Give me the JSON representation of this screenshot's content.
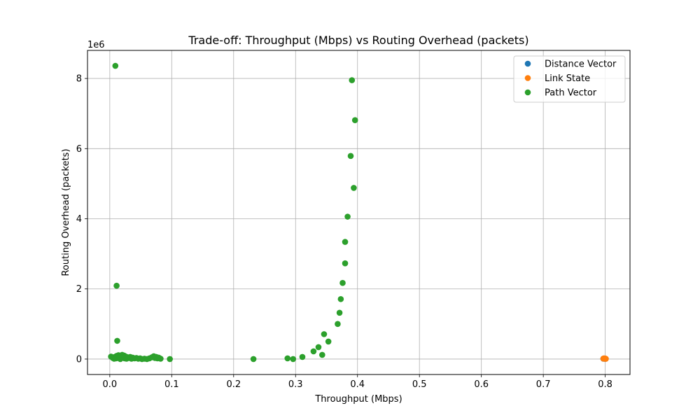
{
  "chart_data": {
    "type": "scatter",
    "title": "Trade-off: Throughput (Mbps) vs Routing Overhead (packets)",
    "xlabel": "Throughput (Mbps)",
    "ylabel": "Routing Overhead (packets)",
    "y_offset_label": "1e6",
    "xlim": [
      -0.036,
      0.84
    ],
    "ylim": [
      -0.44,
      8.8
    ],
    "y_multiplier": 1000000,
    "xticks": [
      0.0,
      0.1,
      0.2,
      0.3,
      0.4,
      0.5,
      0.6,
      0.7,
      0.8
    ],
    "xtick_labels": [
      "0.0",
      "0.1",
      "0.2",
      "0.3",
      "0.4",
      "0.5",
      "0.6",
      "0.7",
      "0.8"
    ],
    "yticks": [
      0,
      2,
      4,
      6,
      8
    ],
    "ytick_labels": [
      "0",
      "2",
      "4",
      "6",
      "8"
    ],
    "grid": true,
    "legend_position": "top-right",
    "series": [
      {
        "name": "Distance Vector",
        "color": "#1f77b4",
        "points": [
          [
            0.797,
            0.01
          ],
          [
            0.799,
            0.012
          ],
          [
            0.8,
            0.008
          ]
        ]
      },
      {
        "name": "Link State",
        "color": "#ff7f0e",
        "points": [
          [
            0.797,
            0.012
          ],
          [
            0.798,
            0.02
          ],
          [
            0.799,
            0.01
          ],
          [
            0.8,
            0.015
          ],
          [
            0.801,
            0.008
          ]
        ]
      },
      {
        "name": "Path Vector",
        "color": "#2ca02c",
        "points": [
          [
            0.009,
            8.36
          ],
          [
            0.011,
            2.09
          ],
          [
            0.012,
            0.52
          ],
          [
            0.002,
            0.07
          ],
          [
            0.005,
            0.03
          ],
          [
            0.007,
            0.01
          ],
          [
            0.008,
            0.06
          ],
          [
            0.01,
            0.02
          ],
          [
            0.011,
            0.09
          ],
          [
            0.013,
            0.03
          ],
          [
            0.014,
            0.11
          ],
          [
            0.016,
            0.05
          ],
          [
            0.017,
            0.0
          ],
          [
            0.018,
            0.08
          ],
          [
            0.02,
            0.12
          ],
          [
            0.021,
            0.04
          ],
          [
            0.023,
            0.1
          ],
          [
            0.024,
            0.02
          ],
          [
            0.026,
            0.07
          ],
          [
            0.027,
            0.01
          ],
          [
            0.029,
            0.05
          ],
          [
            0.031,
            0.03
          ],
          [
            0.033,
            0.06
          ],
          [
            0.035,
            0.01
          ],
          [
            0.037,
            0.04
          ],
          [
            0.04,
            0.02
          ],
          [
            0.043,
            0.03
          ],
          [
            0.046,
            0.01
          ],
          [
            0.049,
            0.02
          ],
          [
            0.052,
            0.0
          ],
          [
            0.056,
            0.01
          ],
          [
            0.06,
            0.0
          ],
          [
            0.064,
            0.02
          ],
          [
            0.068,
            0.05
          ],
          [
            0.071,
            0.08
          ],
          [
            0.073,
            0.03
          ],
          [
            0.075,
            0.06
          ],
          [
            0.077,
            0.02
          ],
          [
            0.079,
            0.04
          ],
          [
            0.082,
            0.01
          ],
          [
            0.097,
            0.0
          ],
          [
            0.232,
            0.0
          ],
          [
            0.287,
            0.02
          ],
          [
            0.296,
            0.0
          ],
          [
            0.311,
            0.06
          ],
          [
            0.329,
            0.22
          ],
          [
            0.337,
            0.34
          ],
          [
            0.343,
            0.12
          ],
          [
            0.346,
            0.71
          ],
          [
            0.353,
            0.5
          ],
          [
            0.368,
            1.0
          ],
          [
            0.371,
            1.32
          ],
          [
            0.373,
            1.71
          ],
          [
            0.376,
            2.17
          ],
          [
            0.38,
            2.73
          ],
          [
            0.38,
            3.34
          ],
          [
            0.384,
            4.06
          ],
          [
            0.389,
            5.79
          ],
          [
            0.391,
            7.95
          ],
          [
            0.394,
            4.88
          ],
          [
            0.396,
            6.81
          ]
        ]
      }
    ]
  }
}
